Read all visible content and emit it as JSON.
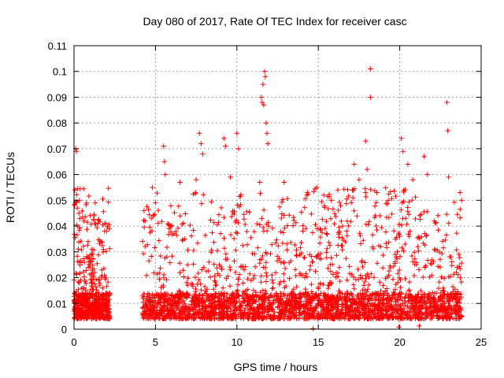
{
  "chart_data": {
    "type": "scatter",
    "title": "Day 080 of 2017, Rate Of TEC Index for receiver casc",
    "xlabel": "GPS time / hours",
    "ylabel": "ROTI / TECUs",
    "xlim": [
      0,
      25
    ],
    "ylim": [
      0,
      0.11
    ],
    "grid": true,
    "marker": "plus",
    "color": "#ff0000",
    "x_ticks": [
      "0",
      "5",
      "10",
      "15",
      "20",
      "25"
    ],
    "y_ticks": [
      "0",
      "0.01",
      "0.02",
      "0.03",
      "0.04",
      "0.05",
      "0.06",
      "0.07",
      "0.08",
      "0.09",
      "0.1",
      "0.11"
    ],
    "series": [
      {
        "points": [
          [
            0.05,
            0.054
          ],
          [
            0.1,
            0.07
          ],
          [
            0.15,
            0.069
          ],
          [
            0.2,
            0.047
          ],
          [
            0.3,
            0.045
          ],
          [
            1.3,
            0.049
          ],
          [
            1.9,
            0.041
          ],
          [
            2.0,
            0.038
          ],
          [
            4.3,
            0.046
          ],
          [
            5.0,
            0.049
          ],
          [
            5.5,
            0.071
          ],
          [
            5.55,
            0.065
          ],
          [
            5.6,
            0.06
          ],
          [
            6.5,
            0.057
          ],
          [
            7.5,
            0.058
          ],
          [
            7.7,
            0.076
          ],
          [
            7.8,
            0.072
          ],
          [
            7.9,
            0.068
          ],
          [
            9.2,
            0.074
          ],
          [
            9.3,
            0.071
          ],
          [
            9.6,
            0.059
          ],
          [
            10.0,
            0.076
          ],
          [
            10.1,
            0.07
          ],
          [
            11.5,
            0.09
          ],
          [
            11.55,
            0.088
          ],
          [
            11.6,
            0.095
          ],
          [
            11.65,
            0.087
          ],
          [
            11.7,
            0.1
          ],
          [
            11.75,
            0.098
          ],
          [
            11.8,
            0.08
          ],
          [
            11.85,
            0.076
          ],
          [
            11.9,
            0.072
          ],
          [
            11.4,
            0.057
          ],
          [
            12.9,
            0.057
          ],
          [
            14.3,
            0.052
          ],
          [
            14.9,
            0.055
          ],
          [
            15.8,
            0.05
          ],
          [
            16.2,
            0.054
          ],
          [
            17.2,
            0.064
          ],
          [
            17.5,
            0.058
          ],
          [
            17.9,
            0.073
          ],
          [
            18.0,
            0.062
          ],
          [
            18.2,
            0.101
          ],
          [
            18.2,
            0.09
          ],
          [
            18.6,
            0.053
          ],
          [
            19.3,
            0.05
          ],
          [
            20.1,
            0.074
          ],
          [
            20.2,
            0.069
          ],
          [
            20.5,
            0.064
          ],
          [
            20.8,
            0.058
          ],
          [
            21.5,
            0.067
          ],
          [
            21.7,
            0.06
          ],
          [
            22.9,
            0.088
          ],
          [
            22.95,
            0.077
          ],
          [
            23.0,
            0.059
          ],
          [
            23.7,
            0.053
          ],
          [
            23.8,
            0.05
          ]
        ]
      }
    ]
  }
}
